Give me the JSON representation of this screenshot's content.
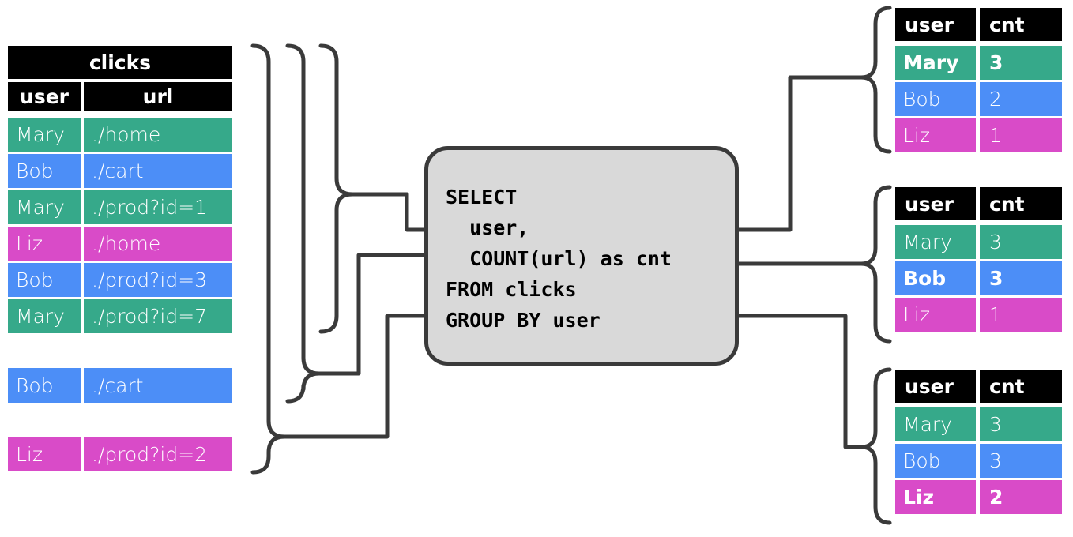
{
  "colors": {
    "Mary": "#36a98a",
    "Bob": "#4c8ef7",
    "Liz": "#d94bc8",
    "header": "#000000",
    "connector": "#3a3a3a",
    "sql_box": "#d9d9d9"
  },
  "clicks": {
    "title": "clicks",
    "headers": [
      "user",
      "url"
    ],
    "rows": [
      {
        "user": "Mary",
        "url": "./home"
      },
      {
        "user": "Bob",
        "url": "./cart"
      },
      {
        "user": "Mary",
        "url": "./prod?id=1"
      },
      {
        "user": "Liz",
        "url": "./home"
      },
      {
        "user": "Bob",
        "url": "./prod?id=3"
      },
      {
        "user": "Mary",
        "url": "./prod?id=7"
      }
    ],
    "extra_rows": [
      {
        "user": "Bob",
        "url": "./cart"
      },
      {
        "user": "Liz",
        "url": "./prod?id=2"
      }
    ]
  },
  "query": {
    "lines": [
      "SELECT",
      "  user,",
      "  COUNT(url) as cnt",
      "FROM clicks",
      "GROUP BY user"
    ]
  },
  "results": [
    {
      "headers": [
        "user",
        "cnt"
      ],
      "rows": [
        {
          "user": "Mary",
          "cnt": "3",
          "bold": true
        },
        {
          "user": "Bob",
          "cnt": "2",
          "bold": false
        },
        {
          "user": "Liz",
          "cnt": "1",
          "bold": false
        }
      ]
    },
    {
      "headers": [
        "user",
        "cnt"
      ],
      "rows": [
        {
          "user": "Mary",
          "cnt": "3",
          "bold": false
        },
        {
          "user": "Bob",
          "cnt": "3",
          "bold": true
        },
        {
          "user": "Liz",
          "cnt": "1",
          "bold": false
        }
      ]
    },
    {
      "headers": [
        "user",
        "cnt"
      ],
      "rows": [
        {
          "user": "Mary",
          "cnt": "3",
          "bold": false
        },
        {
          "user": "Bob",
          "cnt": "3",
          "bold": false
        },
        {
          "user": "Liz",
          "cnt": "2",
          "bold": true
        }
      ]
    }
  ]
}
